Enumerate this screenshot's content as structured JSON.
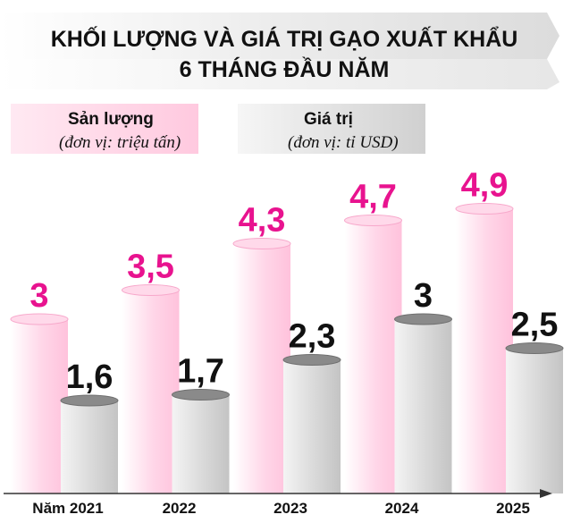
{
  "title_line1": "KHỐI LƯỢNG VÀ GIÁ TRỊ GẠO XUẤT KHẨU",
  "title_line2": "6 THÁNG ĐẦU NĂM",
  "colors": {
    "production": "#ffd2e6",
    "production_text": "#e8138f",
    "value": "#d3d3d3",
    "value_text": "#111111",
    "title_band": "#e6e6e6"
  },
  "chart_data": {
    "type": "bar",
    "categories": [
      "Năm 2021",
      "2022",
      "2023",
      "2024",
      "2025"
    ],
    "series": [
      {
        "name": "Sản lượng",
        "unit": "(đơn vị: triệu tấn)",
        "values": [
          3,
          3.5,
          4.3,
          4.7,
          4.9
        ],
        "labels": [
          "3",
          "3,5",
          "4,3",
          "4,7",
          "4,9"
        ]
      },
      {
        "name": "Giá trị",
        "unit": "(đơn vị: tỉ USD)",
        "values": [
          1.6,
          1.7,
          2.3,
          3,
          2.5
        ],
        "labels": [
          "1,6",
          "1,7",
          "2,3",
          "3",
          "2,5"
        ]
      }
    ],
    "legend": "top-left",
    "grid": false
  }
}
